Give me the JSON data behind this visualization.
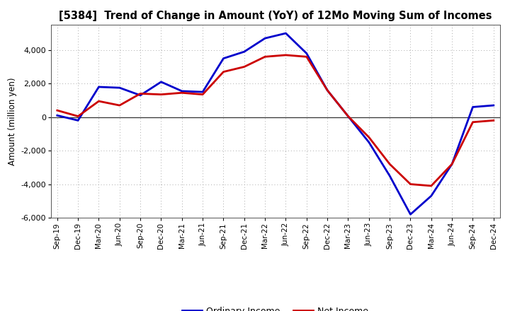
{
  "title": "[5384]  Trend of Change in Amount (YoY) of 12Mo Moving Sum of Incomes",
  "ylabel": "Amount (million yen)",
  "x_labels": [
    "Sep-19",
    "Dec-19",
    "Mar-20",
    "Jun-20",
    "Sep-20",
    "Dec-20",
    "Mar-21",
    "Jun-21",
    "Sep-21",
    "Dec-21",
    "Mar-22",
    "Jun-22",
    "Sep-22",
    "Dec-22",
    "Mar-23",
    "Jun-23",
    "Sep-23",
    "Dec-23",
    "Mar-24",
    "Jun-24",
    "Sep-24",
    "Dec-24"
  ],
  "ordinary_income": [
    100,
    -200,
    1800,
    1750,
    1300,
    2100,
    1550,
    1500,
    3500,
    3900,
    4700,
    5000,
    3800,
    1600,
    50,
    -1500,
    -3500,
    -5800,
    -4700,
    -2800,
    600,
    700
  ],
  "net_income": [
    400,
    50,
    950,
    700,
    1400,
    1350,
    1450,
    1350,
    2700,
    3000,
    3600,
    3700,
    3600,
    1600,
    50,
    -1200,
    -2800,
    -4000,
    -4100,
    -2800,
    -300,
    -200
  ],
  "ordinary_income_color": "#0000cc",
  "net_income_color": "#cc0000",
  "ylim": [
    -6000,
    5500
  ],
  "yticks": [
    -6000,
    -4000,
    -2000,
    0,
    2000,
    4000
  ],
  "background_color": "#ffffff",
  "plot_bg_color": "#ffffff",
  "grid_color": "#aaaaaa",
  "linewidth": 2.0
}
